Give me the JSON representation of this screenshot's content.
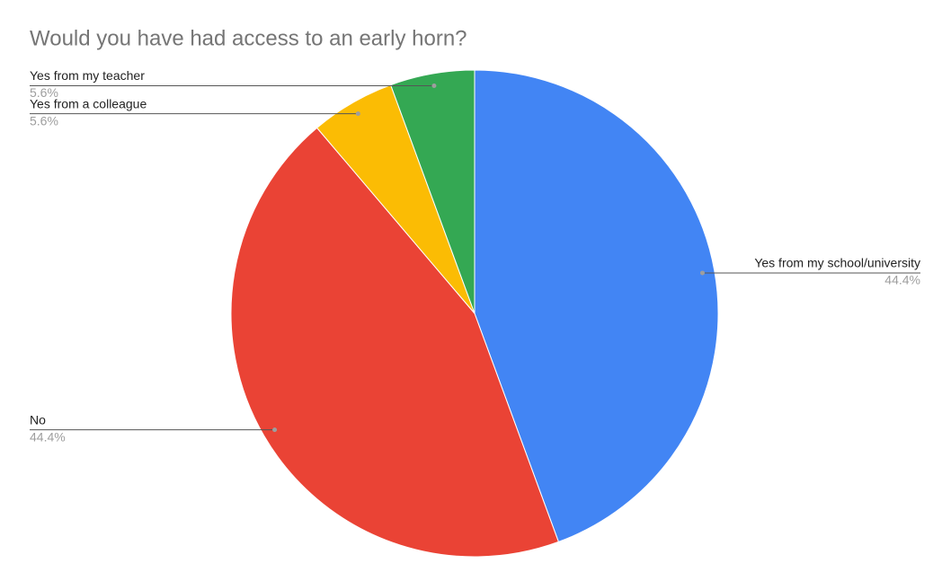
{
  "chart_data": {
    "type": "pie",
    "title": "Would you have had access to an early horn?",
    "categories": [
      "Yes from my school/university",
      "No",
      "Yes from a colleague",
      "Yes from my teacher"
    ],
    "values": [
      44.4,
      44.4,
      5.6,
      5.6
    ],
    "value_labels": [
      "44.4%",
      "44.4%",
      "5.6%",
      "5.6%"
    ],
    "colors": [
      "#4285f4",
      "#ea4335",
      "#fbbc04",
      "#34a853"
    ]
  }
}
